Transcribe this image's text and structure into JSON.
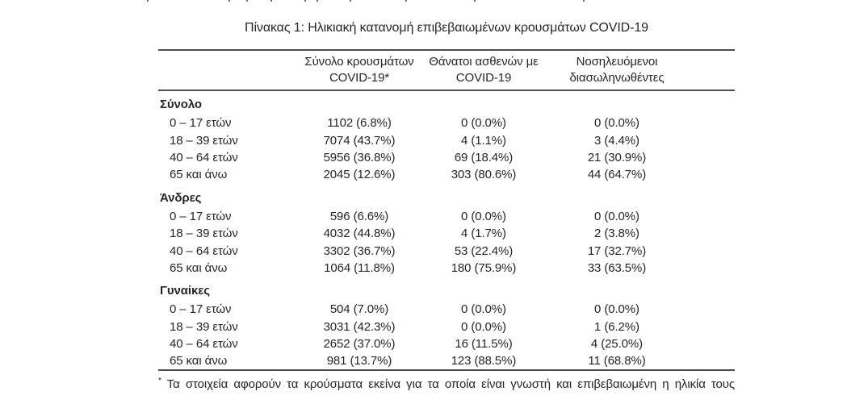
{
  "document": {
    "title": "Πίνακας 1: Ηλικιακή κατανομή επιβεβαιωμένων κρουσμάτων COVID-19",
    "footnote_marker": "*",
    "footnote": "Τα στοιχεία αφορούν τα κρούσματα εκείνα για τα οποία είναι γνωστή και επιβεβαιωμένη η ηλικία τους"
  },
  "table": {
    "column_headers": [
      {
        "line1": "Σύνολο κρουσμάτων",
        "line2": "COVID-19*"
      },
      {
        "line1": "Θάνατοι ασθενών με",
        "line2": "COVID-19"
      },
      {
        "line1": "Νοσηλευόμενοι",
        "line2": "διασωληνωθέντες"
      }
    ],
    "sections": [
      {
        "label": "Σύνολο",
        "rows": [
          {
            "age": "0 – 17 ετών",
            "cases": "1102 (6.8%)",
            "deaths": "0 (0.0%)",
            "intubated": "0 (0.0%)"
          },
          {
            "age": "18 – 39 ετών",
            "cases": "7074 (43.7%)",
            "deaths": "4 (1.1%)",
            "intubated": "3 (4.4%)"
          },
          {
            "age": "40 – 64 ετών",
            "cases": "5956 (36.8%)",
            "deaths": "69 (18.4%)",
            "intubated": "21 (30.9%)"
          },
          {
            "age": "65 και άνω",
            "cases": "2045 (12.6%)",
            "deaths": "303 (80.6%)",
            "intubated": "44 (64.7%)"
          }
        ]
      },
      {
        "label": "Άνδρες",
        "rows": [
          {
            "age": "0 – 17 ετών",
            "cases": "596 (6.6%)",
            "deaths": "0 (0.0%)",
            "intubated": "0 (0.0%)"
          },
          {
            "age": "18 – 39 ετών",
            "cases": "4032 (44.8%)",
            "deaths": "4 (1.7%)",
            "intubated": "2 (3.8%)"
          },
          {
            "age": "40 – 64 ετών",
            "cases": "3302 (36.7%)",
            "deaths": "53 (22.4%)",
            "intubated": "17 (32.7%)"
          },
          {
            "age": "65 και άνω",
            "cases": "1064 (11.8%)",
            "deaths": "180 (75.9%)",
            "intubated": "33 (63.5%)"
          }
        ]
      },
      {
        "label": "Γυναίκες",
        "rows": [
          {
            "age": "0 – 17 ετών",
            "cases": "504 (7.0%)",
            "deaths": "0 (0.0%)",
            "intubated": "0 (0.0%)"
          },
          {
            "age": "18 – 39 ετών",
            "cases": "3031 (42.3%)",
            "deaths": "0 (0.0%)",
            "intubated": "1 (6.2%)"
          },
          {
            "age": "40 – 64 ετών",
            "cases": "2652 (37.0%)",
            "deaths": "16 (11.5%)",
            "intubated": "4 (25.0%)"
          },
          {
            "age": "65 και άνω",
            "cases": "981 (13.7%)",
            "deaths": "123 (88.5%)",
            "intubated": "11 (68.8%)"
          }
        ]
      }
    ]
  },
  "artifacts": {
    "top_text_remnant_dots_x": [
      182,
      283,
      305,
      335,
      377,
      392,
      433,
      502,
      587,
      722
    ]
  },
  "colors": {
    "text": "#262626",
    "rule": "#4f4f4f"
  }
}
